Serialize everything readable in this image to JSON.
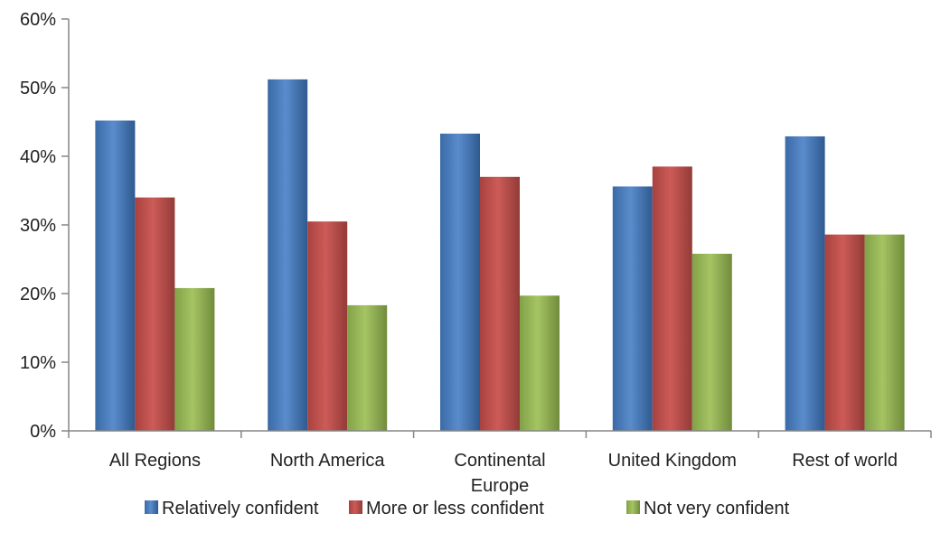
{
  "chart_data": {
    "type": "bar",
    "title": "",
    "xlabel": "",
    "ylabel": "",
    "ylim": [
      0,
      60
    ],
    "yticks": [
      "0%",
      "10%",
      "20%",
      "30%",
      "40%",
      "50%",
      "60%"
    ],
    "categories": [
      [
        "All Regions"
      ],
      [
        "North America"
      ],
      [
        "Continental",
        "Europe"
      ],
      [
        "United Kingdom"
      ],
      [
        "Rest of world"
      ]
    ],
    "series": [
      {
        "name": "Relatively confident",
        "color": "#4f81bd",
        "values": [
          45.2,
          51.2,
          43.3,
          35.6,
          42.9
        ]
      },
      {
        "name": "More or less confident",
        "color": "#c0504d",
        "values": [
          34.0,
          30.5,
          37.0,
          38.5,
          28.6
        ]
      },
      {
        "name": "Not very confident",
        "color": "#9bbb59",
        "values": [
          20.8,
          18.3,
          19.7,
          25.8,
          28.6
        ]
      }
    ],
    "grid": false,
    "legend_position": "bottom"
  }
}
